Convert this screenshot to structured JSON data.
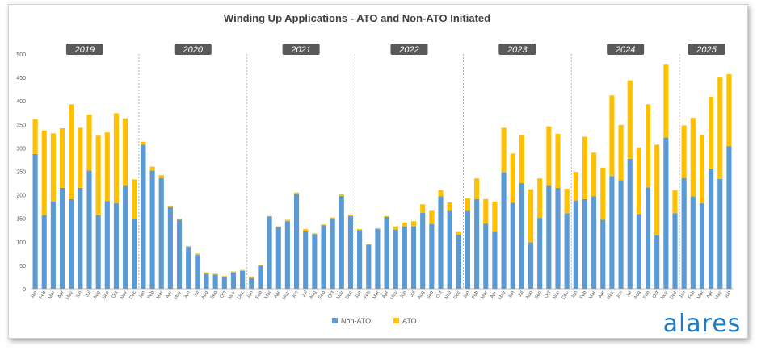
{
  "chart_data": {
    "type": "bar",
    "stacked": true,
    "title": "Winding Up Applications - ATO and Non-ATO Initiated",
    "ylim": [
      0,
      500
    ],
    "yticks": [
      0,
      50,
      100,
      150,
      200,
      250,
      300,
      350,
      400,
      450,
      500
    ],
    "grid": false,
    "legend_position": "bottom",
    "years": [
      "2019",
      "2020",
      "2021",
      "2022",
      "2023",
      "2024",
      "2025"
    ],
    "months": [
      "Jan",
      "Feb",
      "Mar",
      "Apr",
      "May",
      "Jun",
      "Jul",
      "Aug",
      "Sep",
      "Oct",
      "Nov",
      "Dec"
    ],
    "categories": [
      "Jan",
      "Feb",
      "Mar",
      "Apr",
      "May",
      "Jun",
      "Jul",
      "Aug",
      "Sep",
      "Oct",
      "Nov",
      "Dec",
      "Jan",
      "Feb",
      "Mar",
      "Apr",
      "May",
      "Jun",
      "Jul",
      "Aug",
      "Sep",
      "Oct",
      "Nov",
      "Dec",
      "Jan",
      "Feb",
      "Mar",
      "Apr",
      "May",
      "Jun",
      "Jul",
      "Aug",
      "Sep",
      "Oct",
      "Nov",
      "Dec",
      "Jan",
      "Feb",
      "Mar",
      "Apr",
      "May",
      "Jun",
      "Jul",
      "Aug",
      "Sep",
      "Oct",
      "Nov",
      "Dec",
      "Jan",
      "Feb",
      "Mar",
      "Apr",
      "May",
      "Jun",
      "Jul",
      "Aug",
      "Sep",
      "Oct",
      "Nov",
      "Dec",
      "Jan",
      "Feb",
      "Mar",
      "Apr",
      "May",
      "Jun",
      "Jul",
      "Aug",
      "Sep",
      "Oct",
      "Nov",
      "Dec",
      "Jan",
      "Feb",
      "Mar",
      "Apr",
      "May",
      "Jun"
    ],
    "series": [
      {
        "name": "Non-ATO",
        "color": "#5b9bd5",
        "values": [
          287,
          157,
          186,
          215,
          191,
          215,
          252,
          157,
          187,
          182,
          219,
          148,
          307,
          252,
          236,
          174,
          147,
          89,
          72,
          32,
          30,
          25,
          35,
          38,
          23,
          49,
          154,
          131,
          144,
          202,
          122,
          116,
          135,
          150,
          198,
          155,
          125,
          94,
          127,
          153,
          126,
          133,
          133,
          162,
          138,
          197,
          166,
          115,
          166,
          191,
          139,
          121,
          248,
          183,
          225,
          99,
          151,
          219,
          215,
          161,
          188,
          191,
          197,
          147,
          240,
          231,
          277,
          159,
          216,
          114,
          322,
          161,
          236,
          197,
          182,
          256,
          234,
          304
        ]
      },
      {
        "name": "ATO",
        "color": "#ffc000",
        "values": [
          74,
          180,
          145,
          127,
          202,
          128,
          119,
          169,
          146,
          192,
          144,
          85,
          6,
          8,
          6,
          2,
          2,
          2,
          3,
          3,
          2,
          2,
          2,
          2,
          3,
          2,
          1,
          2,
          3,
          3,
          5,
          2,
          2,
          2,
          3,
          3,
          2,
          1,
          2,
          2,
          7,
          8,
          11,
          18,
          28,
          13,
          18,
          6,
          27,
          44,
          52,
          65,
          95,
          105,
          103,
          113,
          84,
          127,
          115,
          52,
          61,
          133,
          93,
          111,
          172,
          118,
          167,
          142,
          177,
          193,
          157,
          49,
          112,
          167,
          146,
          153,
          216,
          153
        ]
      }
    ]
  },
  "logo_text": "alares"
}
